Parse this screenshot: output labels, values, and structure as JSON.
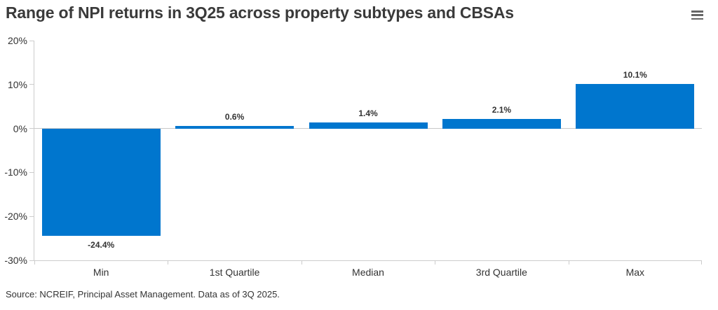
{
  "header": {
    "title": "Range of NPI returns in 3Q25 across property subtypes and CBSAs",
    "menu_icon": "hamburger-menu-icon"
  },
  "chart_data": {
    "type": "bar",
    "title": "Range of NPI returns in 3Q25 across property subtypes and CBSAs",
    "categories": [
      "Min",
      "1st Quartile",
      "Median",
      "3rd Quartile",
      "Max"
    ],
    "values": [
      -24.4,
      0.6,
      1.4,
      2.1,
      10.1
    ],
    "data_labels": [
      "-24.4%",
      "0.6%",
      "1.4%",
      "2.1%",
      "10.1%"
    ],
    "xlabel": "",
    "ylabel": "",
    "ylim": [
      -30,
      20
    ],
    "yticks": [
      20,
      10,
      0,
      -10,
      -20,
      -30
    ],
    "ytick_labels": [
      "20%",
      "10%",
      "0%",
      "-10%",
      "-20%",
      "-30%"
    ],
    "grid": false,
    "legend": false,
    "zero_line": true,
    "bar_color": "#0076CE"
  },
  "colors": {
    "bar": "#0076CE",
    "axis": "#cccccc",
    "text": "#333333",
    "title": "#3a3a3a",
    "menu_icon": "#666666"
  },
  "footer": {
    "source": "Source: NCREIF, Principal Asset Management. Data as of 3Q 2025."
  }
}
